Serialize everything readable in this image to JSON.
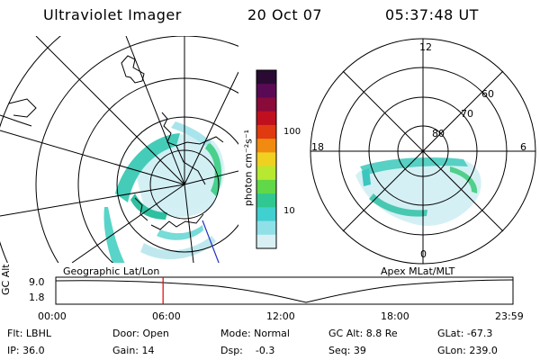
{
  "header": {
    "title": "Ultraviolet Imager",
    "date": "20 Oct 07",
    "time": "05:37:48 UT"
  },
  "colorbar": {
    "unit_label": "photon cm⁻²s⁻¹",
    "ticks": [
      "100",
      "10"
    ],
    "colors": [
      "#2a0a33",
      "#5a0a55",
      "#8a0a3a",
      "#c01020",
      "#e03a10",
      "#f08a10",
      "#f0d020",
      "#b8e830",
      "#60d848",
      "#30c890",
      "#40d0d0",
      "#90e0e8",
      "#d8f0f4"
    ]
  },
  "left_panel": {
    "caption": "Geographic Lat/Lon"
  },
  "right_panel": {
    "caption": "Apex MLat/MLT",
    "lat_labels": [
      "60",
      "70",
      "80"
    ],
    "mlt_labels": [
      "12",
      "18",
      "6",
      "0"
    ]
  },
  "timeline": {
    "axis_label": "GC Alt",
    "y_ticks": [
      "9.0",
      "1.8"
    ],
    "x_ticks": [
      "00:00",
      "06:00",
      "12:00",
      "18:00",
      "23:59"
    ],
    "marker_time_fraction": 0.2346,
    "marker_color": "#e00000"
  },
  "info": {
    "flt": "Flt: LBHL",
    "door": "Door: Open",
    "mode": "Mode: Normal",
    "gcalt": "GC Alt: 8.8 Re",
    "glat": "GLat: -67.3",
    "ip": "IP: 36.0",
    "gain": "Gain: 14",
    "dsp": "Dsp:    -0.3",
    "seq": "Seq: 39",
    "glon": "GLon: 239.0"
  }
}
